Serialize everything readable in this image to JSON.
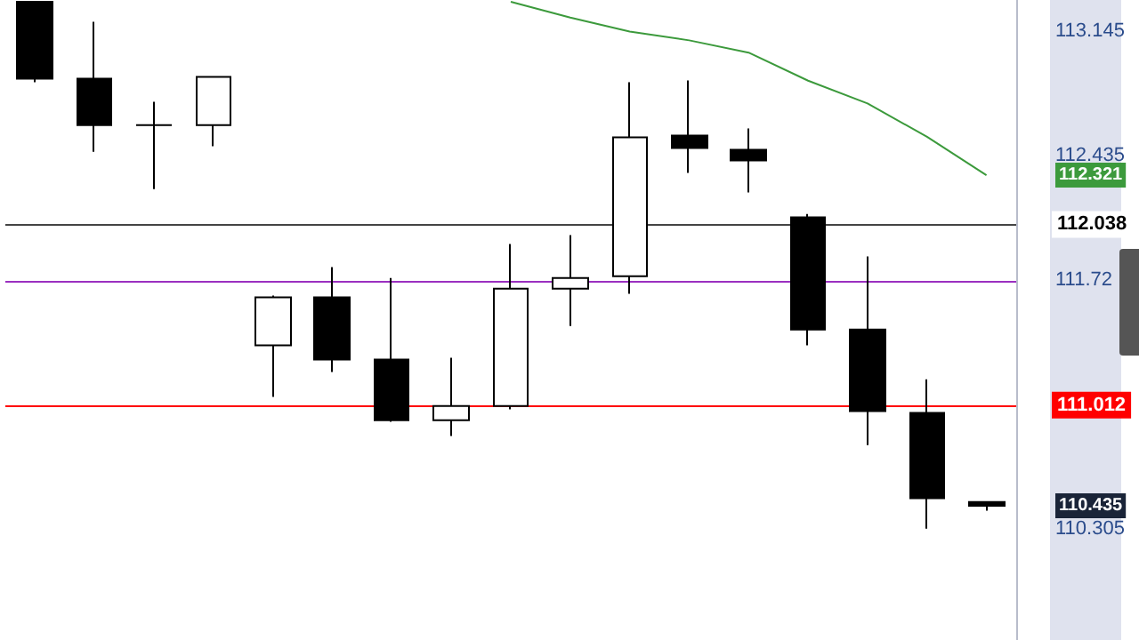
{
  "chart_data": {
    "type": "candlestick",
    "color": "#000000",
    "categories": [
      null,
      null,
      null,
      null,
      null,
      null,
      null,
      null,
      null,
      null,
      null,
      null,
      null,
      null,
      null,
      null,
      null
    ],
    "ohlc": [
      [
        113.31,
        113.31,
        112.851,
        112.871
      ],
      [
        112.871,
        113.196,
        112.455,
        112.607
      ],
      [
        112.607,
        112.739,
        112.242,
        112.607
      ],
      [
        112.607,
        112.881,
        112.486,
        112.881
      ],
      [
        111.35,
        111.634,
        111.056,
        111.624
      ],
      [
        111.624,
        111.796,
        111.198,
        111.269
      ],
      [
        111.269,
        111.735,
        110.914,
        110.924
      ],
      [
        110.924,
        111.279,
        110.833,
        111.005
      ],
      [
        111.005,
        111.928,
        110.985,
        111.674
      ],
      [
        111.674,
        111.979,
        111.461,
        111.735
      ],
      [
        111.745,
        112.851,
        111.644,
        112.537
      ],
      [
        112.547,
        112.861,
        112.334,
        112.476
      ],
      [
        112.466,
        112.587,
        112.222,
        112.405
      ],
      [
        112.08,
        112.1,
        111.35,
        111.441
      ],
      [
        111.441,
        111.857,
        110.782,
        110.975
      ],
      [
        110.965,
        111.157,
        110.305,
        110.478
      ],
      [
        110.457,
        110.457,
        110.407,
        110.435
      ]
    ],
    "series": [
      {
        "type": "line",
        "color": "#3c9a3c",
        "values": [
          null,
          null,
          null,
          null,
          null,
          null,
          null,
          null,
          113.31,
          113.22,
          113.14,
          113.09,
          113.02,
          112.86,
          112.73,
          112.54,
          112.321
        ]
      }
    ],
    "ylim": [
      109.67,
      113.32
    ],
    "yticks": [
      113.145,
      112.435,
      {
        "value": 111.725,
        "label": "111.72"
      },
      110.305
    ],
    "grid": false,
    "marker": "none",
    "ref_lines": [
      {
        "axis": "y",
        "value": 112.038,
        "label": "112.038",
        "color": "#444444"
      },
      {
        "axis": "y",
        "value": 111.725,
        "color": "#9b30c0"
      },
      {
        "axis": "y",
        "value": 111.012,
        "label": "111.012",
        "color": "#ff0000"
      }
    ],
    "annotations": [
      "112.321",
      "110.435"
    ]
  }
}
